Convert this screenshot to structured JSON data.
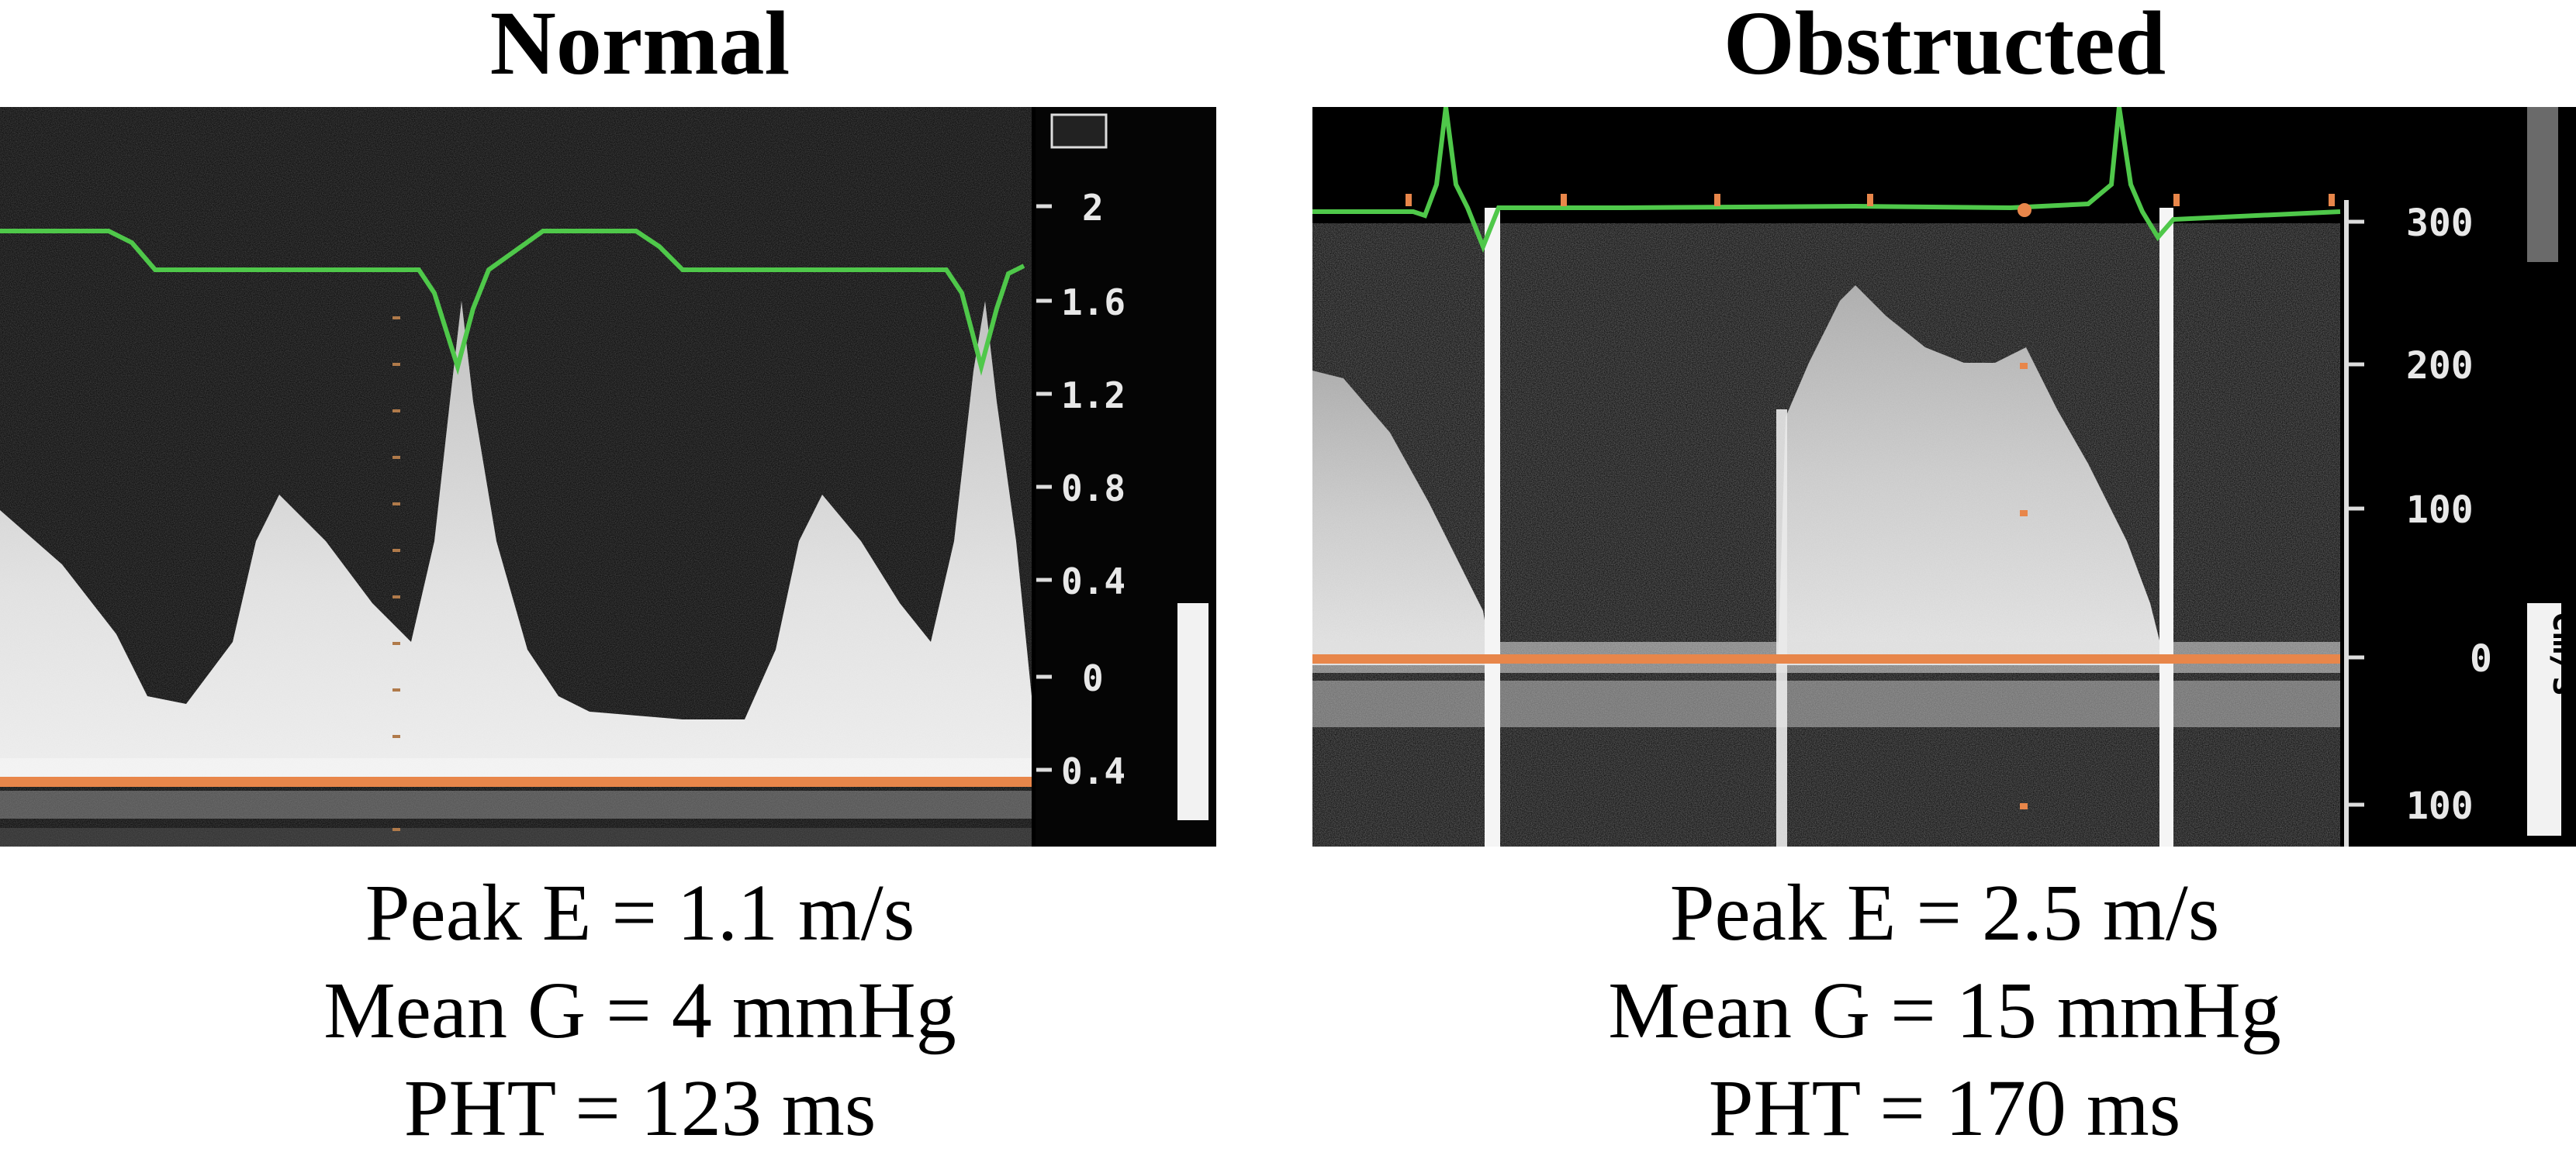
{
  "panels": [
    {
      "title": "Normal",
      "scale_labels": [
        "2",
        "1.6",
        "1.2",
        "0.8",
        "0.4",
        "0",
        "0.4"
      ],
      "measurements": {
        "peak_e": "Peak E = 1.1 m/s",
        "mean_g": "Mean G = 4 mmHg",
        "pht": "PHT = 123 ms"
      }
    },
    {
      "title": "Obstructed",
      "scale_labels": [
        "300",
        "200",
        "100",
        "0",
        "100"
      ],
      "scale_unit": "cm/s",
      "measurements": {
        "peak_e": "Peak E = 2.5 m/s",
        "mean_g": "Mean G = 15 mmHg",
        "pht": "PHT = 170 ms"
      }
    }
  ],
  "colors": {
    "ecg_trace": "#4fc84a",
    "baseline": "#e8864a",
    "doppler_signal": "#e9e9e9",
    "background": "#000000"
  }
}
